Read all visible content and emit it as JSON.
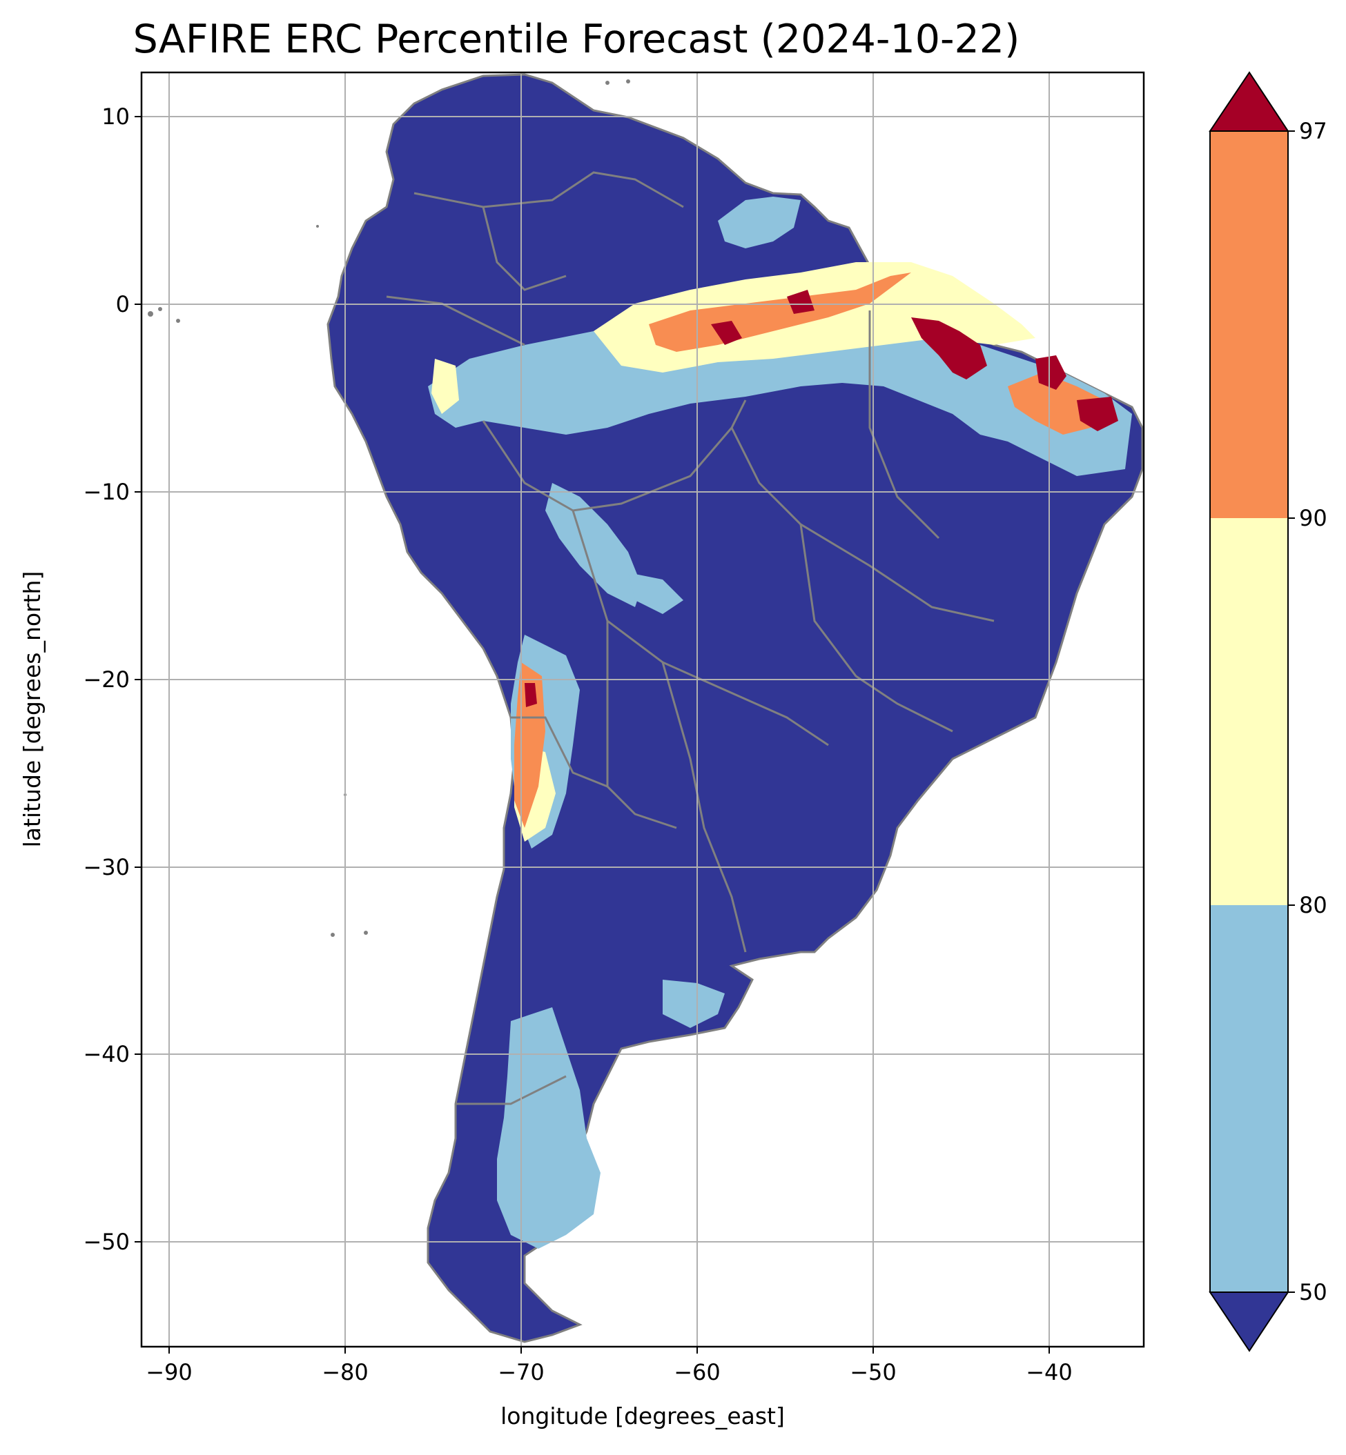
{
  "title": "SAFIRE ERC Percentile Forecast (2024-10-22)",
  "xlabel": "longitude [degrees_east]",
  "ylabel": "latitude [degrees_north]",
  "xticks": [
    "−90",
    "−80",
    "−70",
    "−60",
    "−50",
    "−40"
  ],
  "yticks": [
    "10",
    "0",
    "−10",
    "−20",
    "−30",
    "−40",
    "−50"
  ],
  "colorbar": {
    "ticks": [
      "97",
      "90",
      "80",
      "50"
    ],
    "colors": {
      "below_50": "#313695",
      "50_80": "#8fc3dd",
      "80_90": "#ffffbf",
      "90_97": "#f88d52",
      "above_97": "#a50026"
    }
  },
  "map": {
    "type": "map",
    "region": "South America",
    "grid": true,
    "xlim": [
      -91.5,
      -35
    ],
    "ylim": [
      -55.5,
      12.5
    ],
    "border_color": "#808080"
  }
}
